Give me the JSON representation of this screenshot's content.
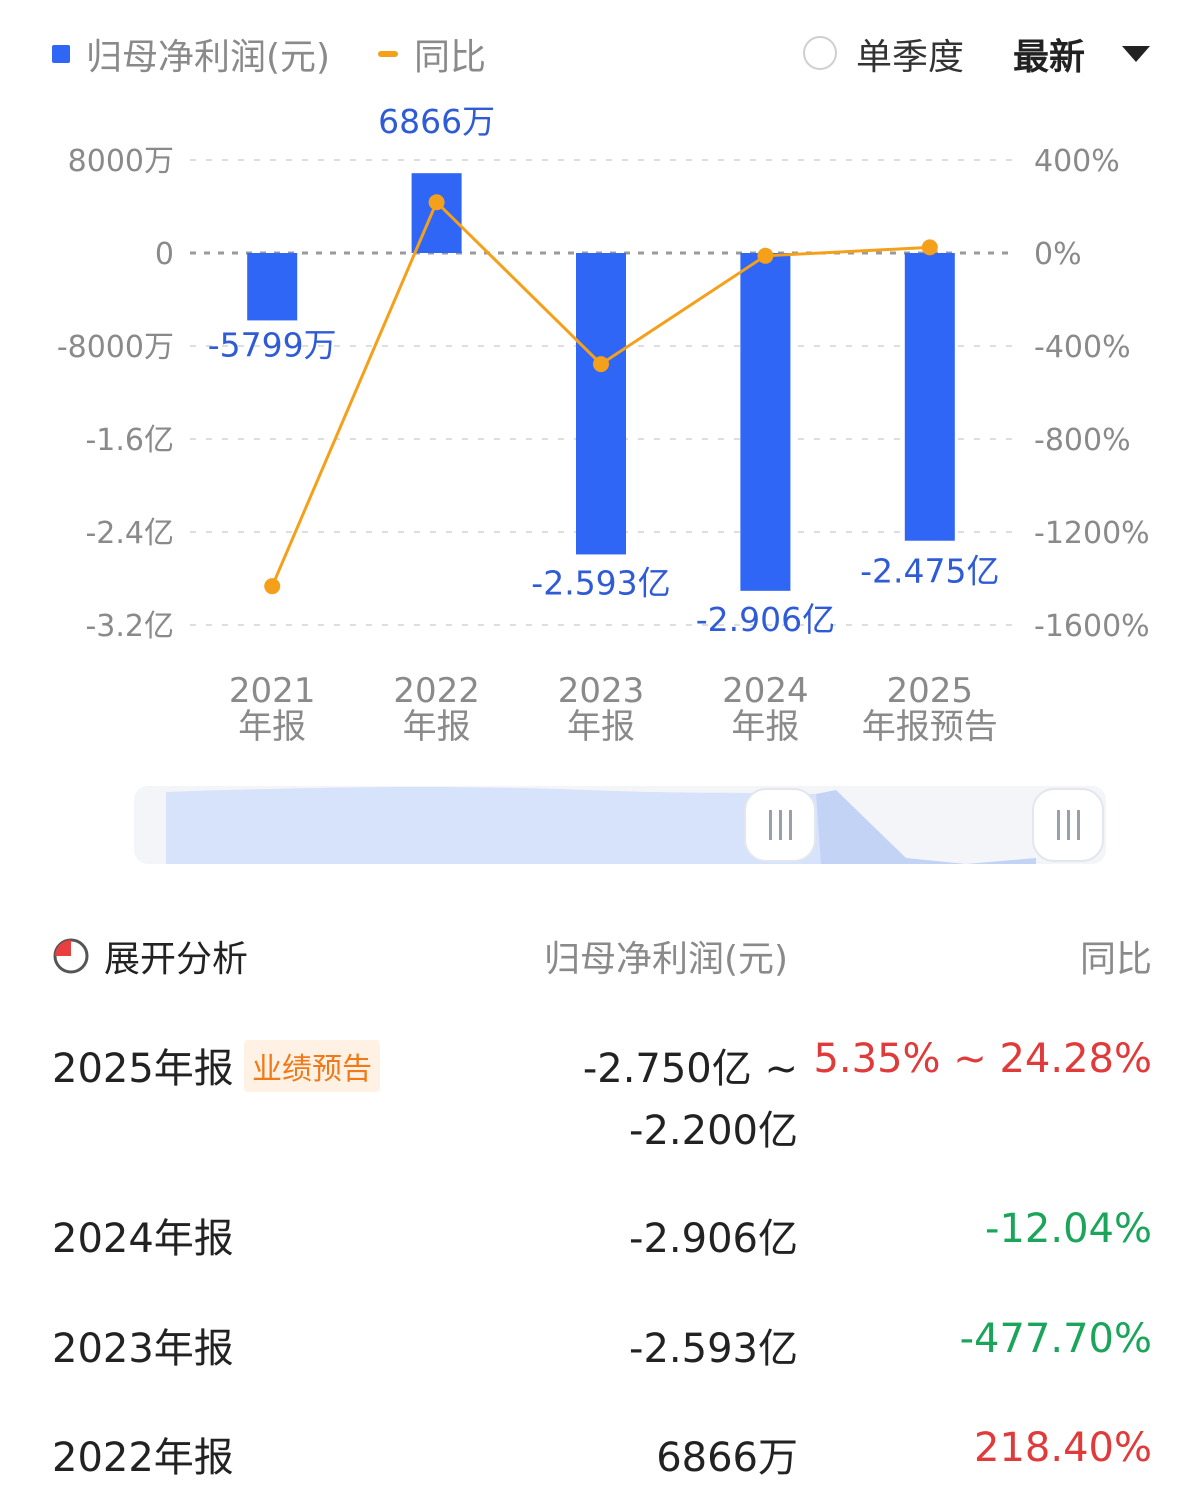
{
  "legend": {
    "bar_label": "归母净利润(元)",
    "line_label": "同比",
    "single_quarter_label": "单季度",
    "latest_label": "最新"
  },
  "colors": {
    "bar": "#2f66f6",
    "line": "#f5a01a",
    "up": "#e03a3a",
    "down": "#1aa55b"
  },
  "chart_data": {
    "type": "bar",
    "categories": [
      "2021\n年报",
      "2022\n年报",
      "2023\n年报",
      "2024\n年报",
      "2025\n年报预告"
    ],
    "series": [
      {
        "name": "归母净利润(元)",
        "type": "bar",
        "axis": "left",
        "values": [
          -57990000,
          68660000,
          -259300000,
          -290600000,
          -247500000
        ],
        "labels": [
          "-5799万",
          "6866万",
          "-2.593亿",
          "-2.906亿",
          "-2.475亿"
        ]
      },
      {
        "name": "同比",
        "type": "line",
        "axis": "right",
        "values": [
          -1433,
          218.4,
          -477.7,
          -12.04,
          24.28
        ]
      }
    ],
    "y_left": {
      "ticks": [
        80000000,
        0,
        -80000000,
        -160000000,
        -240000000,
        -320000000
      ],
      "tick_labels": [
        "8000万",
        "0",
        "-8000万",
        "-1.6亿",
        "-2.4亿",
        "-3.2亿"
      ],
      "range": [
        -320000000,
        80000000
      ]
    },
    "y_right": {
      "ticks": [
        400,
        0,
        -400,
        -800,
        -1200,
        -1600
      ],
      "tick_labels": [
        "400%",
        "0%",
        "-400%",
        "-800%",
        "-1200%",
        "-1600%"
      ],
      "range": [
        -1600,
        400
      ]
    },
    "grid": true,
    "legend": "top-left"
  },
  "table": {
    "expand_label": "展开分析",
    "col_value": "归母净利润(元)",
    "col_yoy": "同比",
    "rows": [
      {
        "period": "2025年报",
        "badge": "业绩预告",
        "value_line1": "-2.750亿 ~",
        "value_line2": "-2.200亿",
        "yoy": "5.35% ~ 24.28%",
        "trend": "up"
      },
      {
        "period": "2024年报",
        "value_line1": "-2.906亿",
        "yoy": "-12.04%",
        "trend": "down"
      },
      {
        "period": "2023年报",
        "value_line1": "-2.593亿",
        "yoy": "-477.70%",
        "trend": "down"
      },
      {
        "period": "2022年报",
        "value_line1": "6866万",
        "yoy": "218.40%",
        "trend": "up"
      }
    ]
  }
}
